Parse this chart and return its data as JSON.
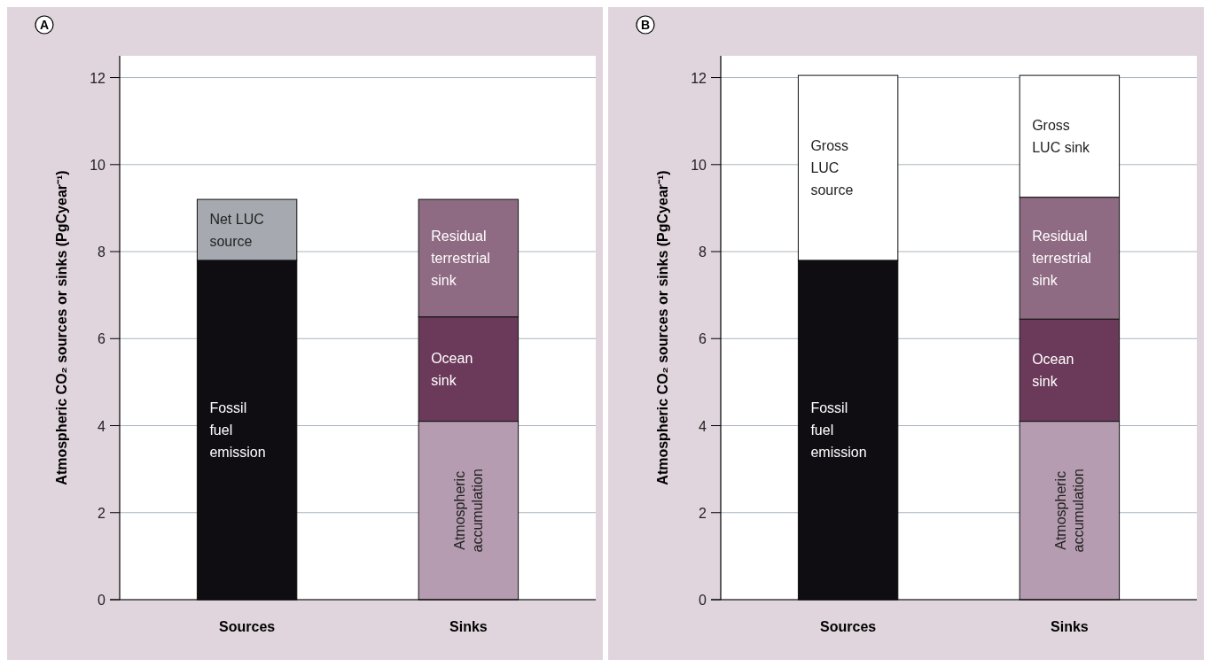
{
  "chart_data": [
    {
      "type": "bar",
      "title": "A",
      "ylabel": "Atmospheric CO₂ sources or sinks (PgCyear⁻¹)",
      "categories": [
        "Sources",
        "Sinks"
      ],
      "stacked": true,
      "ylim": [
        0,
        12.5
      ],
      "yticks": [
        0,
        2,
        4,
        6,
        8,
        10,
        12
      ],
      "grid": "y",
      "series": [
        {
          "name": "Fossil fuel emission",
          "color": "#0f0d12",
          "values": [
            7.8,
            null
          ]
        },
        {
          "name": "Net LUC source",
          "color": "#a6aab0",
          "values": [
            1.4,
            null
          ]
        },
        {
          "name": "Atmospheric accumulation",
          "color": "#b59cb0",
          "values": [
            null,
            4.1
          ]
        },
        {
          "name": "Ocean sink",
          "color": "#6b3a5a",
          "values": [
            null,
            2.4
          ]
        },
        {
          "name": "Residual terrestrial sink",
          "color": "#8e6a83",
          "values": [
            null,
            2.7
          ]
        }
      ]
    },
    {
      "type": "bar",
      "title": "B",
      "ylabel": "Atmospheric CO₂ sources or sinks (PgCyear⁻¹)",
      "categories": [
        "Sources",
        "Sinks"
      ],
      "stacked": true,
      "ylim": [
        0,
        12.5
      ],
      "yticks": [
        0,
        2,
        4,
        6,
        8,
        10,
        12
      ],
      "grid": "y",
      "series": [
        {
          "name": "Fossil fuel emission",
          "color": "#0f0d12",
          "values": [
            7.8,
            null
          ]
        },
        {
          "name": "Gross LUC source",
          "color": "#ffffff",
          "values": [
            4.25,
            null
          ]
        },
        {
          "name": "Atmospheric accumulation",
          "color": "#b59cb0",
          "values": [
            null,
            4.1
          ]
        },
        {
          "name": "Ocean sink",
          "color": "#6b3a5a",
          "values": [
            null,
            2.35
          ]
        },
        {
          "name": "Residual terrestrial sink",
          "color": "#8e6a83",
          "values": [
            null,
            2.8
          ]
        },
        {
          "name": "Gross LUC sink",
          "color": "#ffffff",
          "values": [
            null,
            2.8
          ]
        }
      ]
    }
  ]
}
